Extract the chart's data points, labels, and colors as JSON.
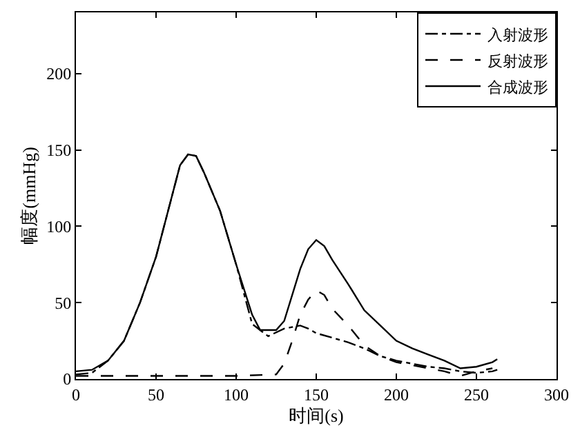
{
  "chart_data": {
    "type": "line",
    "xlabel": "时间(s)",
    "ylabel": "幅度(mmHg)",
    "xlim": [
      0,
      300
    ],
    "xticks": [
      0,
      50,
      100,
      150,
      200,
      250,
      300
    ],
    "ylim": [
      0,
      240
    ],
    "yticks": [
      0,
      50,
      100,
      150,
      200
    ],
    "legend": "top right",
    "marker": "none",
    "series": [
      {
        "name": "入射波形",
        "color": "#000000",
        "line_style": "dashdot",
        "x": [
          0,
          10,
          20,
          30,
          40,
          50,
          60,
          65,
          70,
          75,
          80,
          90,
          100,
          110,
          120,
          130,
          135,
          140,
          145,
          150,
          160,
          170,
          180,
          190,
          200,
          210,
          220,
          230,
          240,
          250,
          260,
          263
        ],
        "values": [
          3,
          4,
          12,
          25,
          50,
          80,
          120,
          140,
          147,
          146,
          135,
          110,
          75,
          36,
          28,
          33,
          34,
          35,
          33,
          30,
          27,
          24,
          20,
          15,
          12,
          10,
          8,
          7,
          5,
          4,
          5,
          6
        ]
      },
      {
        "name": "反射波形",
        "color": "#000000",
        "line_style": "dashed",
        "x": [
          0,
          20,
          40,
          60,
          80,
          100,
          125,
          130,
          135,
          140,
          145,
          150,
          155,
          160,
          170,
          180,
          190,
          200,
          210,
          220,
          230,
          240,
          250,
          260
        ],
        "values": [
          2,
          2,
          2,
          2,
          2,
          2,
          3,
          10,
          25,
          42,
          52,
          58,
          55,
          46,
          35,
          22,
          15,
          11,
          9,
          7,
          5,
          2,
          5,
          7
        ]
      },
      {
        "name": "合成波形",
        "color": "#000000",
        "line_style": "solid",
        "x": [
          0,
          10,
          20,
          30,
          40,
          50,
          60,
          65,
          70,
          75,
          80,
          90,
          100,
          110,
          115,
          125,
          130,
          135,
          140,
          145,
          150,
          155,
          160,
          170,
          180,
          190,
          200,
          210,
          220,
          230,
          240,
          250,
          260,
          263
        ],
        "values": [
          5,
          6,
          12,
          25,
          50,
          80,
          120,
          140,
          147,
          146,
          135,
          110,
          75,
          42,
          32,
          32,
          38,
          55,
          72,
          85,
          91,
          87,
          78,
          62,
          45,
          35,
          25,
          20,
          16,
          12,
          7,
          8,
          11,
          13
        ]
      }
    ]
  }
}
